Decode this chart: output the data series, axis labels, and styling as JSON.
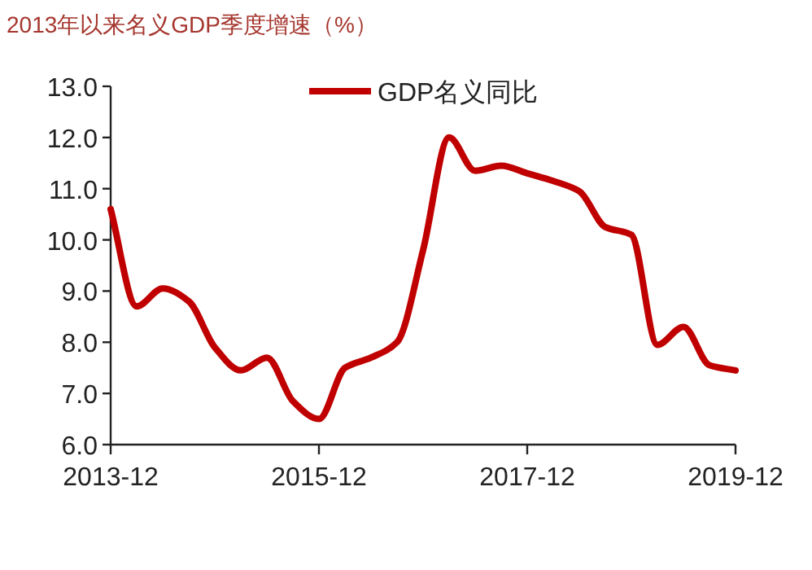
{
  "chart_data": {
    "type": "line",
    "title": "2013年以来名义GDP季度增速（%）",
    "x": [
      "2013-12",
      "2014-03",
      "2014-06",
      "2014-09",
      "2014-12",
      "2015-03",
      "2015-06",
      "2015-09",
      "2015-12",
      "2016-03",
      "2016-06",
      "2016-09",
      "2016-12",
      "2017-03",
      "2017-06",
      "2017-09",
      "2017-12",
      "2018-03",
      "2018-06",
      "2018-09",
      "2018-12",
      "2019-03",
      "2019-06",
      "2019-09",
      "2019-12"
    ],
    "series": [
      {
        "name": "GDP名义同比",
        "color": "#c00000",
        "values": [
          10.6,
          8.7,
          9.05,
          8.8,
          7.9,
          7.45,
          7.7,
          6.85,
          6.5,
          7.5,
          7.7,
          8.0,
          9.8,
          12.0,
          11.35,
          11.45,
          11.3,
          11.15,
          10.95,
          10.25,
          10.1,
          7.95,
          8.3,
          7.55,
          7.45
        ]
      }
    ],
    "xlim": [
      "2013-12",
      "2019-12"
    ],
    "xticks": [
      "2013-12",
      "2015-12",
      "2017-12",
      "2019-12"
    ],
    "ylim": [
      6,
      13
    ],
    "yticks": [
      {
        "value": 6,
        "label": "6.0"
      },
      {
        "value": 7,
        "label": "7.0"
      },
      {
        "value": 8,
        "label": "8.0"
      },
      {
        "value": 9,
        "label": "9.0"
      },
      {
        "value": 10,
        "label": "10.0"
      },
      {
        "value": 11,
        "label": "11.0"
      },
      {
        "value": 12,
        "label": "12.0"
      },
      {
        "value": 13,
        "label": "13.0"
      }
    ],
    "legend": "top",
    "grid": false,
    "marker": "none",
    "line_style": "solid"
  }
}
